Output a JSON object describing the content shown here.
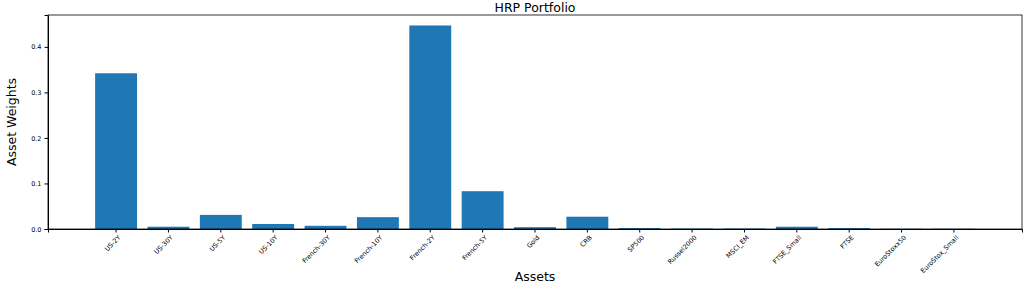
{
  "chart_data": {
    "type": "bar",
    "title": "HRP Portfolio",
    "x_label": "Assets",
    "y_label": "Asset Weights",
    "categories": [
      "US-2Y",
      "US-30Y",
      "US-5Y",
      "US-10Y",
      "French-30Y",
      "French-10Y",
      "French-2Y",
      "French-5Y",
      "Gold",
      "CRB",
      "SP500",
      "Russel2000",
      "MSCI_EM",
      "FTSE_Small",
      "FTSE",
      "EuroStoxx50",
      "EuroStox_Small"
    ],
    "values": [
      0.342,
      0.005,
      0.031,
      0.011,
      0.007,
      0.026,
      0.447,
      0.083,
      0.004,
      0.027,
      0.002,
      0.001,
      0.001,
      0.005,
      0.002,
      0.0005,
      0.0005
    ],
    "color": "#1f77b4",
    "ylim": [
      0,
      0.47
    ],
    "yticks": [
      {
        "value": 0,
        "label": "0.0"
      },
      0.1,
      0.2,
      0.3,
      0.4
    ],
    "grid": false
  }
}
